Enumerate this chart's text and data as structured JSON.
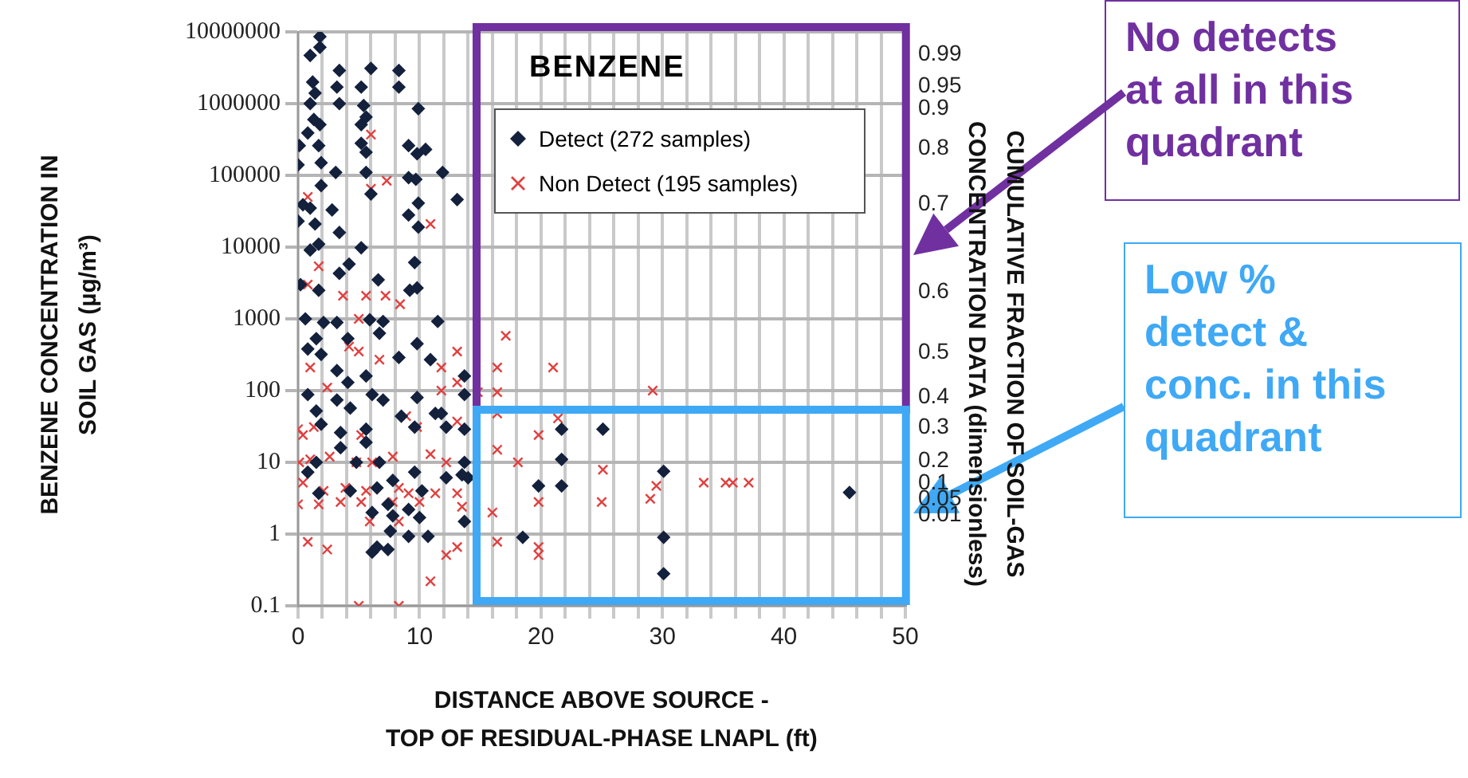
{
  "chart_data": {
    "type": "scatter",
    "xlabel": "DISTANCE ABOVE SOURCE -\nTOP OF RESIDUAL-PHASE LNAPL (ft)",
    "ylabel": "BENZENE CONCENTRATION IN\nSOIL GAS (µg/m³)",
    "y2label": "CUMULATIVE FRACTION OF SOIL-GAS\nCONCENTRATION DATA (dimensionless)",
    "legend_title": "BENZENE",
    "legend": "top right",
    "grid": true,
    "log": "y",
    "xlim": [
      0,
      50
    ],
    "ylim": [
      0.1,
      10000000
    ],
    "xticks": [
      0,
      {
        "value": 2,
        "label": null
      },
      {
        "value": 4,
        "label": null
      },
      {
        "value": 6,
        "label": null
      },
      {
        "value": 8,
        "label": null
      },
      10,
      {
        "value": 12,
        "label": null
      },
      {
        "value": 14,
        "label": null
      },
      {
        "value": 16,
        "label": null
      },
      {
        "value": 18,
        "label": null
      },
      20,
      {
        "value": 22,
        "label": null
      },
      {
        "value": 24,
        "label": null
      },
      {
        "value": 26,
        "label": null
      },
      {
        "value": 28,
        "label": null
      },
      30,
      {
        "value": 32,
        "label": null
      },
      {
        "value": 34,
        "label": null
      },
      {
        "value": 36,
        "label": null
      },
      {
        "value": 38,
        "label": null
      },
      40,
      {
        "value": 42,
        "label": null
      },
      {
        "value": 44,
        "label": null
      },
      {
        "value": 46,
        "label": null
      },
      {
        "value": 48,
        "label": null
      },
      50
    ],
    "yticks": [
      0.1,
      1,
      10,
      100,
      1000,
      10000,
      100000,
      1000000,
      10000000
    ],
    "annotations": [
      "No detects\nat all in this\nquadrant",
      "Low %\ndetect &\nconc. in this\nquadrant",
      "0.99",
      "0.95",
      "0.9",
      "0.8",
      "0.7",
      "0.6",
      "0.5",
      "0.4",
      "0.3",
      "0.2",
      "0.1",
      "0.05",
      "0.01"
    ],
    "series": [
      {
        "name": "Detect (272 samples)",
        "color": "#14213d",
        "marker": "diamond",
        "x": [
          1.8,
          1.8,
          1.0,
          3.4,
          6.0,
          8.3,
          8.3,
          1.2,
          1.4,
          1.0,
          3.2,
          3.4,
          5.2,
          5.4,
          5.6,
          5.2,
          9.9,
          1.3,
          1.8,
          0.8,
          0.1,
          1.7,
          5.2,
          5.6,
          9.1,
          10.5,
          9.8,
          0.0,
          1.9,
          3.1,
          5.6,
          9.1,
          9.7,
          11.9,
          13.1,
          6.0,
          1.9,
          0.4,
          1.0,
          2.8,
          9.9,
          9.1,
          9.9,
          0.0,
          1.4,
          3.4,
          1.7,
          1.0,
          5.2,
          9.6,
          4.2,
          3.4,
          6.6,
          0.2,
          1.7,
          9.2,
          9.8,
          0.6,
          2.1,
          3.2,
          5.9,
          7.0,
          11.5,
          1.5,
          0.8,
          1.9,
          4.1,
          6.7,
          9.8,
          8.3,
          10.9,
          3.2,
          5.6,
          4.1,
          0.8,
          3.2,
          6.1,
          7.0,
          9.8,
          1.5,
          4.3,
          8.5,
          11.3,
          11.8,
          1.9,
          3.5,
          5.6,
          9.6,
          12.2,
          5.6,
          3.5,
          0.8,
          1.5,
          4.8,
          6.7,
          9.6,
          12.2,
          13.5,
          7.8,
          6.5,
          10.2,
          1.7,
          4.3,
          6.1,
          7.8,
          9.1,
          7.4,
          10.0,
          7.6,
          9.1,
          10.7,
          6.5,
          7.4,
          6.1,
          14.0,
          13.7,
          13.7,
          13.7,
          21.7,
          25.1,
          21.7,
          19.8,
          21.7,
          30.1,
          18.5,
          30.1,
          30.1,
          45.4,
          13.7,
          13.7
        ],
        "values": [
          8600000,
          6100000,
          4700000,
          2900000,
          3100000,
          2900000,
          1700000,
          2000000,
          1400000,
          1000000,
          1700000,
          1000000,
          1700000,
          940000,
          650000,
          510000,
          850000,
          600000,
          510000,
          390000,
          260000,
          260000,
          280000,
          210000,
          260000,
          230000,
          200000,
          140000,
          150000,
          110000,
          110000,
          93000,
          88000,
          110000,
          46000,
          55000,
          72000,
          39000,
          35000,
          33000,
          41000,
          28000,
          19000,
          23000,
          21000,
          16000,
          11000,
          9100,
          9800,
          6100,
          5800,
          4300,
          3500,
          3000,
          2500,
          2500,
          2700,
          1000,
          890,
          890,
          970,
          920,
          920,
          530,
          380,
          320,
          530,
          630,
          450,
          290,
          270,
          190,
          160,
          130,
          88,
          74,
          88,
          74,
          80,
          52,
          57,
          44,
          48,
          48,
          34,
          26,
          29,
          31,
          31,
          19,
          16,
          7.3,
          10,
          10,
          10,
          7.3,
          6.1,
          6.7,
          5.6,
          4.4,
          4.0,
          3.7,
          4.0,
          2.0,
          1.8,
          2.2,
          2.6,
          1.7,
          1.1,
          0.93,
          0.93,
          0.66,
          0.61,
          0.56,
          6.1,
          160,
          88,
          29,
          29,
          29,
          11,
          4.7,
          4.7,
          7.5,
          0.9,
          0.9,
          0.28,
          3.8,
          10,
          1.5
        ]
      },
      {
        "name": "Non Detect (195 samples)",
        "color": "#e0403f",
        "marker": "cross",
        "x": [
          6.0,
          7.3,
          6.0,
          0.8,
          10.9,
          1.7,
          0.8,
          3.7,
          5.6,
          7.2,
          8.4,
          5.0,
          4.2,
          5.0,
          6.7,
          13.1,
          1.0,
          2.4,
          11.8,
          11.8,
          13.1,
          0.0,
          0.4,
          1.3,
          5.2,
          8.9,
          9.8,
          13.1,
          0.1,
          1.0,
          2.6,
          4.8,
          6.1,
          7.8,
          10.9,
          12.2,
          0.4,
          2.1,
          3.9,
          5.6,
          8.3,
          9.1,
          11.3,
          13.1,
          0.0,
          1.7,
          3.5,
          5.2,
          7.8,
          10.0,
          13.5,
          5.9,
          8.3,
          0.8,
          2.4,
          13.1,
          12.2,
          10.9,
          5.0,
          8.3,
          17.1,
          16.4,
          21.0,
          16.4,
          14.8,
          29.2,
          16.4,
          21.4,
          19.8,
          16.4,
          18.1,
          25.1,
          29.5,
          33.4,
          35.2,
          35.8,
          37.1,
          19.8,
          25.0,
          29.0,
          16.0,
          16.4,
          19.8,
          19.8
        ],
        "values": [
          370000,
          84000,
          65000,
          50000,
          21000,
          5400,
          3000,
          2100,
          2100,
          2100,
          1600,
          1000,
          410,
          350,
          270,
          350,
          210,
          110,
          210,
          100,
          130,
          29,
          24,
          31,
          24,
          44,
          31,
          37,
          10,
          11,
          12,
          10,
          10,
          12,
          13,
          10,
          5.2,
          4.0,
          4.4,
          4.0,
          4.4,
          3.7,
          3.7,
          3.7,
          2.6,
          2.6,
          2.8,
          2.8,
          2.8,
          2.8,
          2.4,
          1.5,
          1.5,
          0.78,
          0.61,
          0.66,
          0.51,
          0.22,
          0.1,
          0.1,
          580,
          210,
          210,
          95,
          95,
          100,
          48,
          41,
          24,
          15,
          10,
          7.9,
          4.7,
          5.2,
          5.2,
          5.2,
          5.2,
          2.8,
          2.8,
          3.1,
          2.0,
          0.78,
          0.66,
          0.51
        ]
      }
    ]
  }
}
